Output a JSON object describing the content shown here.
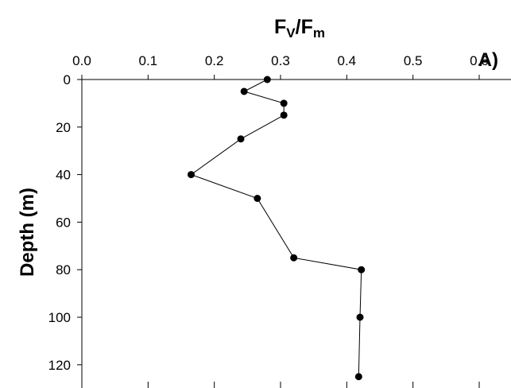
{
  "chart_data": {
    "type": "scatter",
    "title": "",
    "panel_label": "A)",
    "xlabel": {
      "main": "F",
      "sub1": "V",
      "slash": "/F",
      "sub2": "m"
    },
    "ylabel": "Depth (m)",
    "xlim": [
      0,
      0.6
    ],
    "ylim": [
      0,
      120
    ],
    "y_inverted": true,
    "x_axis_position": "top",
    "x_ticks": [
      "0.0",
      "0.1",
      "0.2",
      "0.3",
      "0.4",
      "0.5",
      "0.6"
    ],
    "y_ticks": [
      "0",
      "20",
      "40",
      "60",
      "80",
      "100",
      "120"
    ],
    "grid": false,
    "legend": "none",
    "series": [
      {
        "style": "line-with-markers",
        "color": "#000000",
        "points": [
          {
            "x": 0.28,
            "y": 0
          },
          {
            "x": 0.245,
            "y": 5
          },
          {
            "x": 0.305,
            "y": 10
          },
          {
            "x": 0.305,
            "y": 15
          },
          {
            "x": 0.24,
            "y": 25
          },
          {
            "x": 0.165,
            "y": 40
          },
          {
            "x": 0.265,
            "y": 50
          },
          {
            "x": 0.32,
            "y": 75
          },
          {
            "x": 0.422,
            "y": 80
          },
          {
            "x": 0.42,
            "y": 100
          },
          {
            "x": 0.418,
            "y": 125
          }
        ]
      }
    ]
  }
}
